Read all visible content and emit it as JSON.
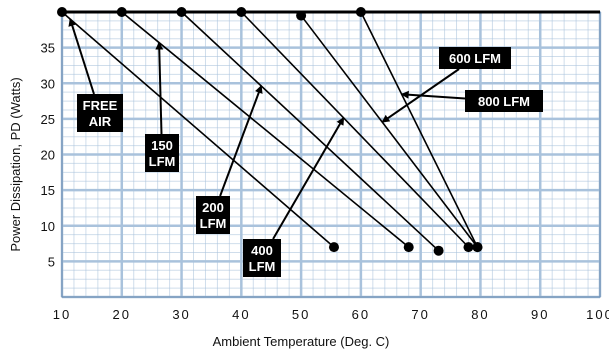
{
  "chart_data": {
    "type": "line",
    "xlabel": "Ambient Temperature (Deg. C)",
    "ylabel": "Power Dissipation, PD (Watts)",
    "xlim": [
      10,
      100
    ],
    "ylim": [
      0,
      40
    ],
    "x_ticks": [
      "10",
      "20",
      "30",
      "40",
      "50",
      "60",
      "70",
      "80",
      "90",
      "100"
    ],
    "y_ticks": [
      "35",
      "30",
      "25",
      "20",
      "15",
      "10",
      "5"
    ],
    "grid": true,
    "series": [
      {
        "name": "FREE AIR",
        "points": [
          [
            10,
            40
          ],
          [
            55.5,
            7
          ]
        ]
      },
      {
        "name": "150 LFM",
        "points": [
          [
            20,
            40
          ],
          [
            68,
            7
          ]
        ]
      },
      {
        "name": "200 LFM",
        "points": [
          [
            30,
            40
          ],
          [
            73,
            6.5
          ]
        ]
      },
      {
        "name": "400 LFM",
        "points": [
          [
            40,
            40
          ],
          [
            78,
            7
          ]
        ]
      },
      {
        "name": "600 LFM",
        "points": [
          [
            50,
            39.5
          ],
          [
            79.5,
            7
          ]
        ]
      },
      {
        "name": "800 LFM",
        "points": [
          [
            60,
            40
          ],
          [
            79.5,
            7
          ]
        ]
      }
    ],
    "annotations": [
      {
        "series": "FREE AIR",
        "lines": [
          "FREE",
          "AIR"
        ]
      },
      {
        "series": "150 LFM",
        "lines": [
          "150",
          "LFM"
        ]
      },
      {
        "series": "200 LFM",
        "lines": [
          "200",
          "LFM"
        ]
      },
      {
        "series": "400 LFM",
        "lines": [
          "400",
          "LFM"
        ]
      },
      {
        "series": "600 LFM",
        "lines": [
          "600 LFM"
        ]
      },
      {
        "series": "800 LFM",
        "lines": [
          "800 LFM"
        ]
      }
    ],
    "colors": {
      "grid": "#a9c2dc",
      "background": "#ffffff",
      "line": "#000000",
      "callout_bg": "#000000",
      "callout_text": "#ffffff"
    }
  }
}
